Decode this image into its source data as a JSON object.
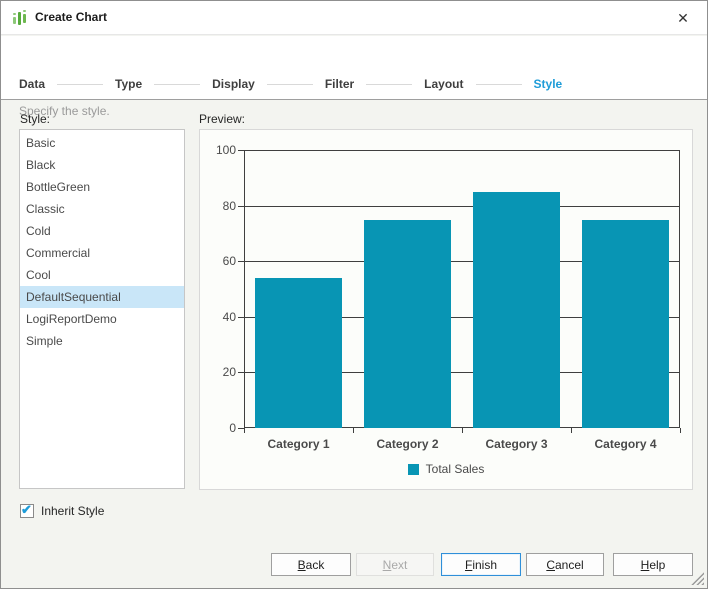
{
  "window": {
    "title": "Create Chart",
    "close_glyph": "✕"
  },
  "steps": [
    {
      "label": "Data",
      "active": false
    },
    {
      "label": "Type",
      "active": false
    },
    {
      "label": "Display",
      "active": false
    },
    {
      "label": "Filter",
      "active": false
    },
    {
      "label": "Layout",
      "active": false
    },
    {
      "label": "Style",
      "active": true
    }
  ],
  "subtitle": "Specify the style.",
  "style_list": {
    "label": "Style:",
    "items": [
      "Basic",
      "Black",
      "BottleGreen",
      "Classic",
      "Cold",
      "Commercial",
      "Cool",
      "DefaultSequential",
      "LogiReportDemo",
      "Simple"
    ],
    "selected": "DefaultSequential",
    "selected_index": 7
  },
  "preview": {
    "label": "Preview:"
  },
  "chart_data": {
    "type": "bar",
    "categories": [
      "Category 1",
      "Category 2",
      "Category 3",
      "Category 4"
    ],
    "series": [
      {
        "name": "Total Sales",
        "values": [
          54,
          75,
          85,
          75
        ]
      }
    ],
    "title": "",
    "xlabel": "",
    "ylabel": "",
    "ylim": [
      0,
      100
    ],
    "yticks": [
      0,
      20,
      40,
      60,
      80,
      100
    ],
    "grid": true,
    "legend_position": "bottom",
    "bar_color": "#0895b4",
    "gridline_color": "#3f3f3f"
  },
  "inherit_style": {
    "label": "Inherit Style",
    "checked": true
  },
  "buttons": [
    {
      "name": "back",
      "mnemonic": "B",
      "rest": "ack",
      "state": "normal"
    },
    {
      "name": "next",
      "mnemonic": "N",
      "rest": "ext",
      "state": "disabled"
    },
    {
      "name": "finish",
      "mnemonic": "F",
      "rest": "inish",
      "state": "default"
    },
    {
      "name": "cancel",
      "mnemonic": "C",
      "rest": "ancel",
      "state": "normal"
    },
    {
      "name": "help",
      "mnemonic": "H",
      "rest": "elp",
      "state": "normal"
    }
  ],
  "colors": {
    "accent_blue": "#1e9cd8",
    "bar_teal": "#0895b4",
    "selection_blue": "#c9e6f8",
    "step_text": "#3f3f3f"
  }
}
